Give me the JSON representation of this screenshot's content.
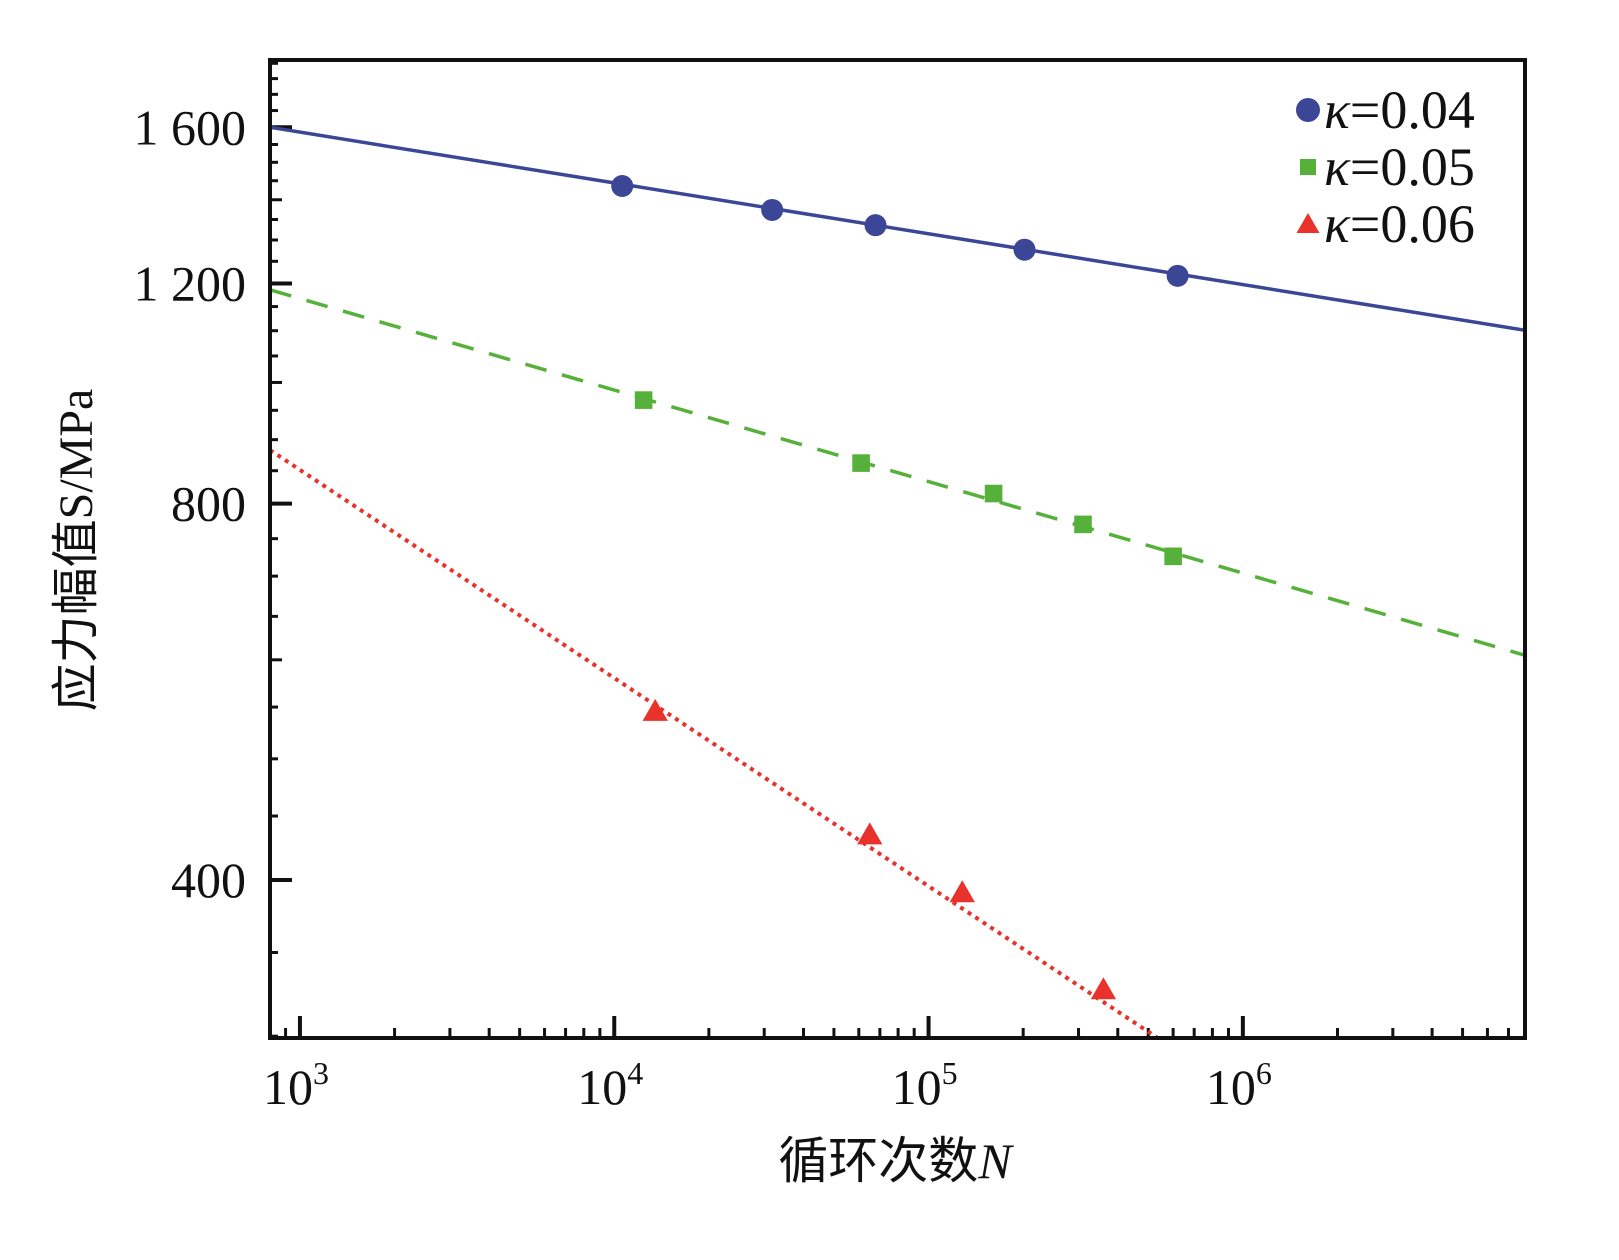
{
  "chart_data": {
    "type": "scatter",
    "xscale": "log",
    "yscale": "log",
    "xlabel": "循环次数N",
    "xlabel_main": "循环次数",
    "xlabel_var": "N",
    "ylabel": "应力幅值S/MPa",
    "xlim": [
      803,
      7900000
    ],
    "ylim": [
      299,
      1811
    ],
    "x_ticks": [
      {
        "value": 1000,
        "base": "10",
        "exp": "3"
      },
      {
        "value": 10000,
        "base": "10",
        "exp": "4"
      },
      {
        "value": 100000,
        "base": "10",
        "exp": "5"
      },
      {
        "value": 1000000,
        "base": "10",
        "exp": "6"
      }
    ],
    "y_ticks": [
      {
        "value": 400,
        "label": "400"
      },
      {
        "value": 800,
        "label": "800"
      },
      {
        "value": 1200,
        "label": "1 200"
      },
      {
        "value": 1600,
        "label": "1 600"
      }
    ],
    "grid": false,
    "legend_position": "top-right",
    "series": [
      {
        "name": "κ=0.04",
        "kappa_symbol": "κ",
        "kappa_value": "=0.04",
        "color": "#3b4696",
        "marker": "circle",
        "line": "solid",
        "points": [
          [
            10600,
            1436
          ],
          [
            31800,
            1374
          ],
          [
            67800,
            1336
          ],
          [
            202000,
            1277
          ],
          [
            620000,
            1217
          ]
        ],
        "fit": [
          [
            803,
            1600
          ],
          [
            7900000,
            1101
          ]
        ]
      },
      {
        "name": "κ=0.05",
        "kappa_symbol": "κ",
        "kappa_value": "=0.05",
        "color": "#56b13a",
        "marker": "square",
        "line": "dashed",
        "points": [
          [
            12400,
            968
          ],
          [
            61000,
            862
          ],
          [
            161000,
            815
          ],
          [
            310000,
            770
          ],
          [
            600000,
            726
          ]
        ],
        "fit": [
          [
            803,
            1186
          ],
          [
            7900000,
            605
          ]
        ]
      },
      {
        "name": "κ=0.06",
        "kappa_symbol": "κ",
        "kappa_value": "=0.06",
        "color": "#e8322b",
        "marker": "triangle",
        "line": "dotted",
        "points": [
          [
            13500,
            546
          ],
          [
            65000,
            435
          ],
          [
            128000,
            391
          ],
          [
            360000,
            327
          ]
        ],
        "fit": [
          [
            803,
            883
          ],
          [
            536000,
            299
          ]
        ]
      }
    ]
  }
}
